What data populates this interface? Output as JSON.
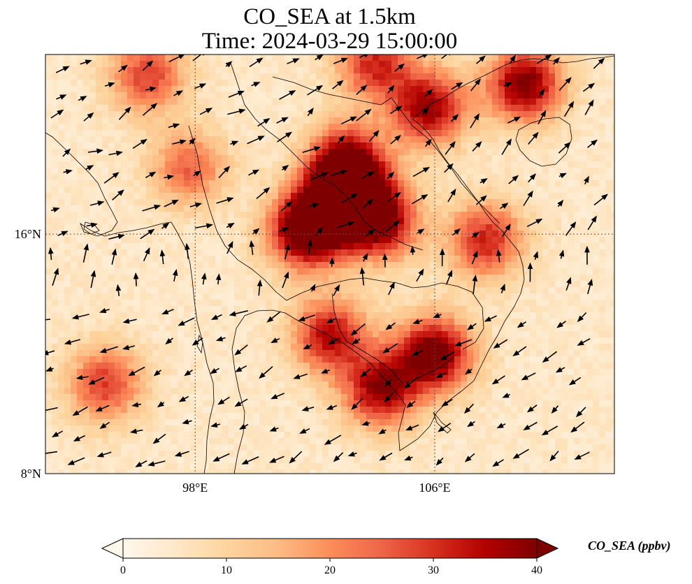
{
  "title": {
    "line1": "CO_SEA at 1.5km",
    "line2": "Time: 2024-03-29 15:00:00"
  },
  "map": {
    "lon_range": [
      93,
      112
    ],
    "lat_range": [
      8,
      22
    ],
    "xticks": [
      {
        "value": 98,
        "label": "98°E"
      },
      {
        "value": 106,
        "label": "106°E"
      }
    ],
    "yticks": [
      {
        "value": 16,
        "label": "16°N"
      },
      {
        "value": 8,
        "label": "8°N"
      }
    ],
    "gridlines": true,
    "colormap": "OrRd",
    "colormap_stops": [
      "#fff7ec",
      "#fee8c8",
      "#fdd49e",
      "#fdbb84",
      "#fc8d59",
      "#ef6548",
      "#d7301f",
      "#b30000",
      "#7f0000"
    ],
    "hotspots_deg": [
      {
        "lon": 103.2,
        "lat": 17.5,
        "value": 40
      },
      {
        "lon": 104.2,
        "lat": 16.4,
        "value": 33
      },
      {
        "lon": 101.6,
        "lat": 16.0,
        "value": 30
      },
      {
        "lon": 102.3,
        "lat": 16.6,
        "value": 29
      },
      {
        "lon": 103.0,
        "lat": 18.5,
        "value": 26
      },
      {
        "lon": 106.0,
        "lat": 12.0,
        "value": 38
      },
      {
        "lon": 104.2,
        "lat": 10.8,
        "value": 33
      },
      {
        "lon": 102.5,
        "lat": 12.6,
        "value": 30
      },
      {
        "lon": 105.8,
        "lat": 20.2,
        "value": 33
      },
      {
        "lon": 109.0,
        "lat": 21.0,
        "value": 36
      },
      {
        "lon": 107.7,
        "lat": 15.8,
        "value": 27
      },
      {
        "lon": 96.4,
        "lat": 21.3,
        "value": 24
      },
      {
        "lon": 95.0,
        "lat": 11.0,
        "value": 24
      },
      {
        "lon": 97.8,
        "lat": 18.2,
        "value": 20
      },
      {
        "lon": 104.0,
        "lat": 21.7,
        "value": 26
      }
    ]
  },
  "colorbar": {
    "label": "CO_SEA (ppbv)",
    "ticks": [
      0,
      10,
      20,
      30,
      40
    ],
    "range": [
      0,
      40
    ],
    "extend": "both"
  }
}
